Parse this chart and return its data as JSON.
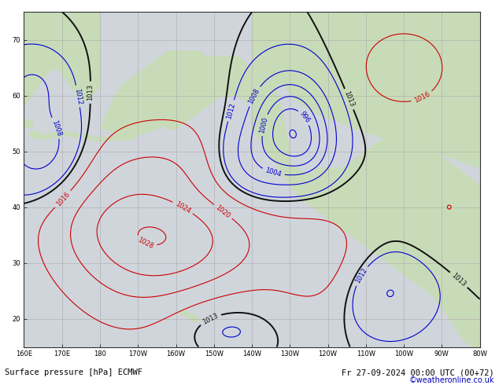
{
  "title_bottom_left": "Surface pressure [hPa] ECMWF",
  "title_bottom_right": "Fr 27-09-2024 00:00 UTC (00+72)",
  "copyright": "©weatheronline.co.uk",
  "bg_ocean": "#d0d5dc",
  "bg_land": "#c8dbb8",
  "grid_color": "#aaaaaa",
  "c_blue": "#0000cc",
  "c_black": "#111111",
  "c_red": "#cc0000",
  "label_fontsize": 6,
  "title_fontsize": 7.5,
  "fig_width": 6.34,
  "fig_height": 4.9,
  "dpi": 100,
  "lon_min": -200,
  "lon_max": -80,
  "lat_min": 15,
  "lat_max": 75
}
